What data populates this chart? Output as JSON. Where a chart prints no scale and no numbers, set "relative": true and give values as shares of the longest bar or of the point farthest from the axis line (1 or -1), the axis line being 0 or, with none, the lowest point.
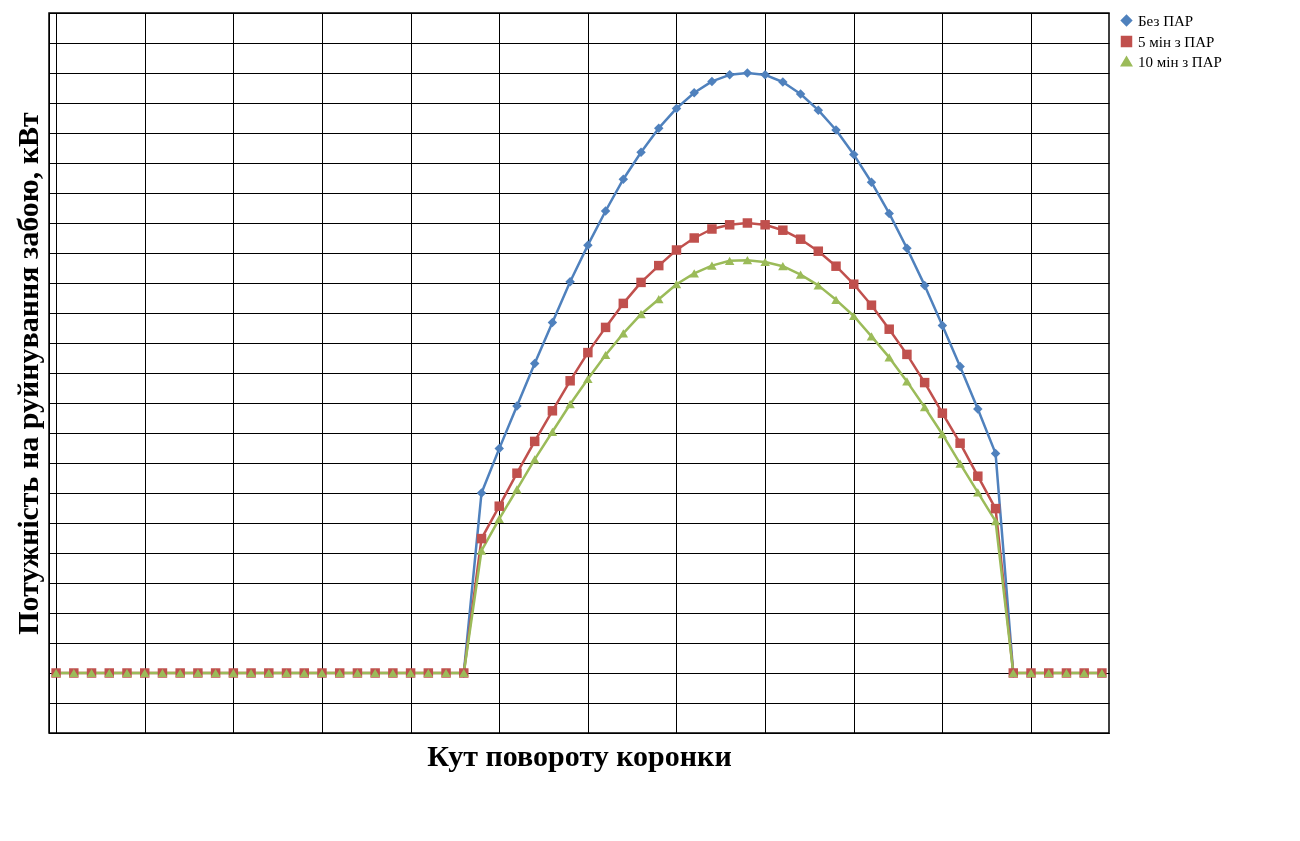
{
  "chart_data": {
    "type": "line",
    "relative": true,
    "xlabel": "Кут  повороту коронки",
    "ylabel": "Потужність на руйнування забою, кВт",
    "grid": true,
    "legend": "right",
    "line_style": "solid",
    "categories": [
      null,
      null,
      null,
      null,
      null,
      null,
      null,
      null,
      null,
      null,
      null,
      null,
      null,
      null,
      null,
      null,
      null,
      null,
      null,
      null,
      null,
      null,
      null,
      null,
      null,
      null,
      null,
      null,
      null,
      null,
      null,
      null,
      null,
      null,
      null,
      null,
      null,
      null,
      null,
      null,
      null,
      null,
      null,
      null,
      null,
      null,
      null,
      null,
      null,
      null,
      null,
      null,
      null,
      null,
      null,
      null,
      null,
      null,
      null,
      null
    ],
    "series": [
      {
        "name": "Без ПАР",
        "color": "#4f81bd",
        "marker": "diamond",
        "values": [
          null,
          null,
          null,
          null,
          null,
          null,
          null,
          null,
          null,
          null,
          null,
          null,
          null,
          null,
          null,
          null,
          null,
          null,
          null,
          null,
          null,
          null,
          null,
          0,
          0.3,
          0.374,
          0.445,
          0.516,
          0.584,
          0.652,
          0.713,
          0.77,
          0.823,
          0.868,
          0.908,
          0.941,
          0.967,
          0.986,
          0.997,
          1,
          0.997,
          0.985,
          0.965,
          0.938,
          0.905,
          0.864,
          0.818,
          0.766,
          0.708,
          0.646,
          0.579,
          0.511,
          0.44,
          0.366,
          0,
          null,
          null,
          null,
          null,
          null
        ]
      },
      {
        "name": "5 мін з ПАР",
        "color": "#c0504d",
        "marker": "square",
        "values": [
          0,
          0,
          0,
          0,
          0,
          0,
          0,
          0,
          0,
          0,
          0,
          0,
          0,
          0,
          0,
          0,
          0,
          0,
          0,
          0,
          0,
          0,
          0,
          0,
          0.224,
          0.278,
          0.333,
          0.386,
          0.437,
          0.487,
          0.534,
          0.576,
          0.616,
          0.651,
          0.679,
          0.705,
          0.725,
          0.74,
          0.747,
          0.75,
          0.747,
          0.738,
          0.723,
          0.703,
          0.678,
          0.648,
          0.613,
          0.573,
          0.531,
          0.484,
          0.433,
          0.383,
          0.328,
          0.274,
          0,
          0,
          0,
          0,
          0,
          0
        ]
      },
      {
        "name": "10 мін з ПАР",
        "color": "#9bbb59",
        "marker": "triangle",
        "values": [
          0,
          0,
          0,
          0,
          0,
          0,
          0,
          0,
          0,
          0,
          0,
          0,
          0,
          0,
          0,
          0,
          0,
          0,
          0,
          0,
          0,
          0,
          0,
          0,
          0.204,
          0.257,
          0.306,
          0.356,
          0.402,
          0.448,
          0.49,
          0.53,
          0.566,
          0.598,
          0.623,
          0.648,
          0.666,
          0.679,
          0.687,
          0.688,
          0.685,
          0.678,
          0.664,
          0.646,
          0.622,
          0.595,
          0.561,
          0.526,
          0.486,
          0.443,
          0.398,
          0.349,
          0.301,
          0.253,
          0,
          0,
          0,
          0,
          0,
          0
        ]
      }
    ]
  }
}
